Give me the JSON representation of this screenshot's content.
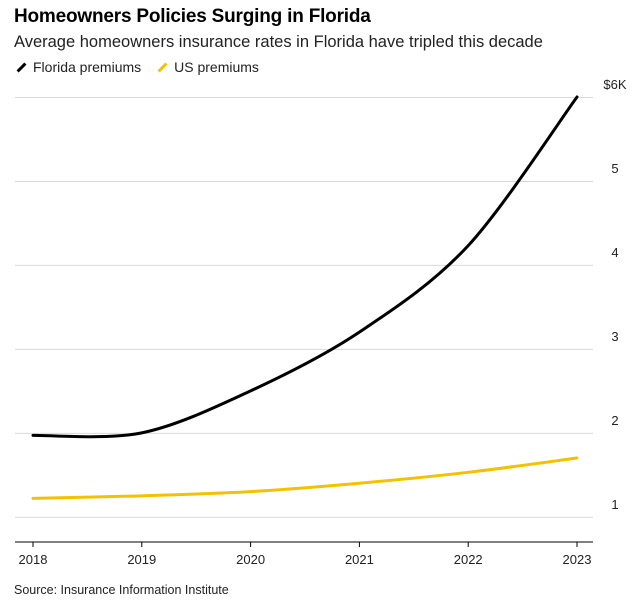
{
  "chart_data": {
    "type": "line",
    "title": "Homeowners Policies Surging in Florida",
    "subtitle": "Average homeowners insurance rates in Florida have tripled this decade",
    "source": "Source: Insurance Information Institute",
    "x": [
      "2018",
      "2019",
      "2020",
      "2021",
      "2022",
      "2023"
    ],
    "y_ticks": [
      {
        "value": 1,
        "label": "1"
      },
      {
        "value": 2,
        "label": "2"
      },
      {
        "value": 3,
        "label": "3"
      },
      {
        "value": 4,
        "label": "4"
      },
      {
        "value": 5,
        "label": "5"
      },
      {
        "value": 6,
        "label": "$6K"
      }
    ],
    "ylim": [
      0.7,
      6.0
    ],
    "grid": true,
    "legend_position": "top-left",
    "series": [
      {
        "name": "Florida premiums",
        "color": "#000000",
        "values": [
          1.97,
          2.0,
          2.5,
          3.2,
          4.23,
          6.0
        ]
      },
      {
        "name": "US premiums",
        "color": "#f2c200",
        "values": [
          1.22,
          1.25,
          1.3,
          1.4,
          1.53,
          1.7
        ]
      }
    ]
  }
}
